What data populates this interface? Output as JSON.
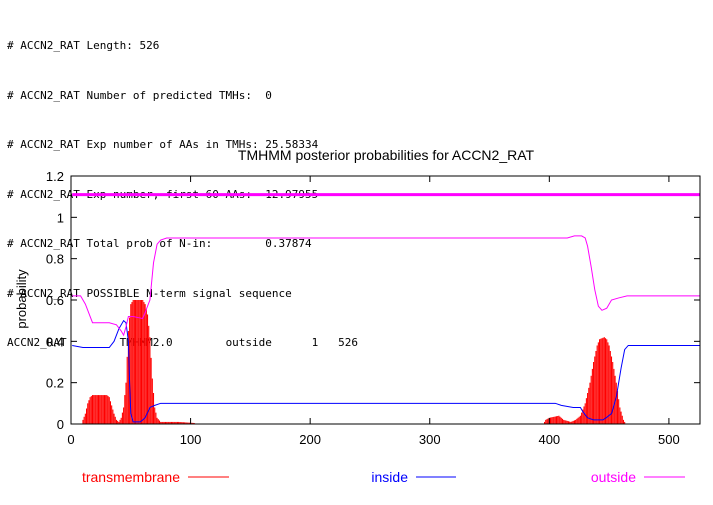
{
  "header": {
    "lines": [
      "# ACCN2_RAT Length: 526",
      "# ACCN2_RAT Number of predicted TMHs:  0",
      "# ACCN2_RAT Exp number of AAs in TMHs: 25.58334",
      "# ACCN2_RAT Exp number, first 60 AAs:  12.97955",
      "# ACCN2_RAT Total prob of N-in:        0.37874",
      "# ACCN2_RAT POSSIBLE N-term signal sequence"
    ],
    "summary": {
      "id": "ACCN2_RAT",
      "method": "TMHMM2.0",
      "location": "outside",
      "start": "1",
      "end": "526"
    }
  },
  "colors": {
    "transmembrane": "#ff0000",
    "inside": "#0000ff",
    "outside": "#ff00ff",
    "axis": "#000000"
  },
  "chart_data": {
    "type": "line",
    "title": "TMHMM posterior probabilities for ACCN2_RAT",
    "xlabel": "",
    "ylabel": "probability",
    "xlim": [
      0,
      526
    ],
    "ylim": [
      0,
      1.2
    ],
    "xticks": [
      0,
      100,
      200,
      300,
      400,
      500
    ],
    "yticks": [
      0,
      0.2,
      0.4,
      0.6,
      0.8,
      1,
      1.2
    ],
    "grid": false,
    "legend_position": "bottom",
    "outside_band": {
      "y": 1.11,
      "from": 1,
      "to": 526,
      "label": "outside"
    },
    "series": [
      {
        "name": "transmembrane",
        "style": "impulses",
        "color": "#ff0000",
        "points": [
          [
            1,
            0
          ],
          [
            9,
            0
          ],
          [
            10,
            0.02
          ],
          [
            12,
            0.05
          ],
          [
            14,
            0.1
          ],
          [
            16,
            0.13
          ],
          [
            18,
            0.14
          ],
          [
            30,
            0.14
          ],
          [
            32,
            0.13
          ],
          [
            34,
            0.09
          ],
          [
            36,
            0.05
          ],
          [
            38,
            0.02
          ],
          [
            40,
            0.01
          ],
          [
            42,
            0.03
          ],
          [
            44,
            0.08
          ],
          [
            46,
            0.2
          ],
          [
            48,
            0.45
          ],
          [
            50,
            0.58
          ],
          [
            52,
            0.6
          ],
          [
            60,
            0.6
          ],
          [
            62,
            0.58
          ],
          [
            64,
            0.53
          ],
          [
            66,
            0.42
          ],
          [
            68,
            0.22
          ],
          [
            70,
            0.08
          ],
          [
            72,
            0.03
          ],
          [
            75,
            0.01
          ],
          [
            90,
            0.01
          ],
          [
            103,
            0.005
          ],
          [
            105,
            0
          ],
          [
            395,
            0
          ],
          [
            397,
            0.02
          ],
          [
            400,
            0.03
          ],
          [
            408,
            0.04
          ],
          [
            412,
            0.02
          ],
          [
            418,
            0.01
          ],
          [
            422,
            0.02
          ],
          [
            426,
            0.04
          ],
          [
            430,
            0.1
          ],
          [
            434,
            0.2
          ],
          [
            437,
            0.3
          ],
          [
            440,
            0.38
          ],
          [
            442,
            0.41
          ],
          [
            446,
            0.42
          ],
          [
            448,
            0.41
          ],
          [
            450,
            0.38
          ],
          [
            453,
            0.3
          ],
          [
            456,
            0.2
          ],
          [
            459,
            0.08
          ],
          [
            462,
            0.02
          ],
          [
            464,
            0
          ],
          [
            526,
            0
          ]
        ]
      },
      {
        "name": "inside",
        "style": "line",
        "color": "#0000ff",
        "points": [
          [
            1,
            0.38
          ],
          [
            10,
            0.37
          ],
          [
            32,
            0.37
          ],
          [
            36,
            0.4
          ],
          [
            40,
            0.46
          ],
          [
            44,
            0.5
          ],
          [
            46,
            0.49
          ],
          [
            48,
            0.4
          ],
          [
            49,
            0.2
          ],
          [
            50,
            0.05
          ],
          [
            52,
            0.01
          ],
          [
            58,
            0.01
          ],
          [
            62,
            0.03
          ],
          [
            66,
            0.08
          ],
          [
            70,
            0.09
          ],
          [
            75,
            0.1
          ],
          [
            120,
            0.1
          ],
          [
            380,
            0.1
          ],
          [
            405,
            0.1
          ],
          [
            410,
            0.09
          ],
          [
            420,
            0.08
          ],
          [
            426,
            0.08
          ],
          [
            428,
            0.06
          ],
          [
            432,
            0.03
          ],
          [
            437,
            0.02
          ],
          [
            445,
            0.02
          ],
          [
            452,
            0.05
          ],
          [
            456,
            0.13
          ],
          [
            460,
            0.27
          ],
          [
            463,
            0.36
          ],
          [
            466,
            0.38
          ],
          [
            526,
            0.38
          ]
        ]
      },
      {
        "name": "outside",
        "style": "line",
        "color": "#ff00ff",
        "points": [
          [
            1,
            0.62
          ],
          [
            8,
            0.62
          ],
          [
            12,
            0.58
          ],
          [
            18,
            0.49
          ],
          [
            32,
            0.49
          ],
          [
            38,
            0.48
          ],
          [
            42,
            0.45
          ],
          [
            44,
            0.43
          ],
          [
            46,
            0.47
          ],
          [
            48,
            0.52
          ],
          [
            52,
            0.52
          ],
          [
            60,
            0.51
          ],
          [
            66,
            0.6
          ],
          [
            69,
            0.78
          ],
          [
            72,
            0.87
          ],
          [
            75,
            0.89
          ],
          [
            80,
            0.9
          ],
          [
            200,
            0.9
          ],
          [
            350,
            0.9
          ],
          [
            415,
            0.9
          ],
          [
            421,
            0.91
          ],
          [
            427,
            0.91
          ],
          [
            430,
            0.9
          ],
          [
            432,
            0.86
          ],
          [
            435,
            0.76
          ],
          [
            438,
            0.65
          ],
          [
            441,
            0.57
          ],
          [
            444,
            0.55
          ],
          [
            448,
            0.56
          ],
          [
            452,
            0.6
          ],
          [
            458,
            0.61
          ],
          [
            465,
            0.62
          ],
          [
            526,
            0.62
          ]
        ]
      }
    ]
  }
}
